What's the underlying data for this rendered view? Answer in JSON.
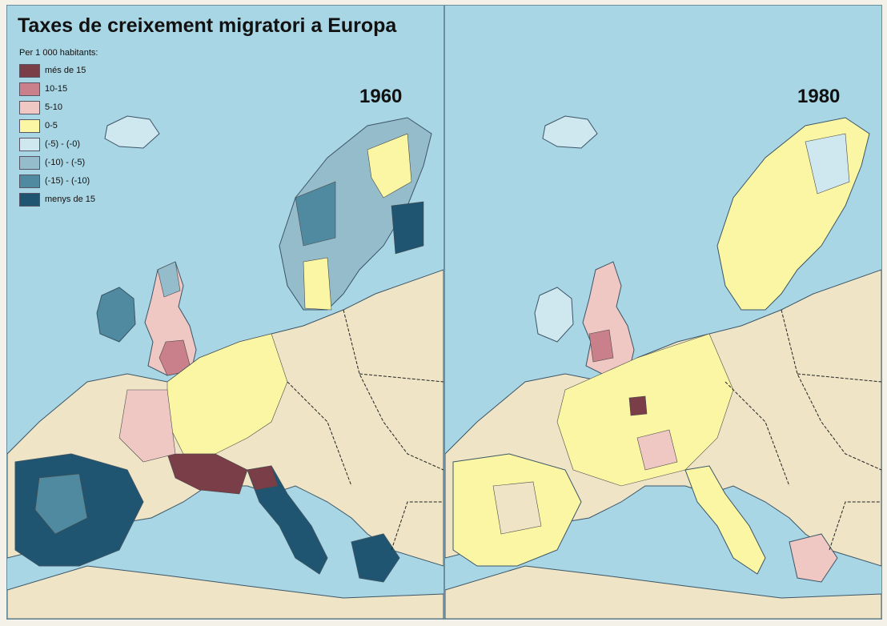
{
  "title": "Taxes de creixement migratori a Europa",
  "legend": {
    "heading": "Per 1 000 habitants:",
    "items": [
      {
        "label": "més de 15",
        "color": "#7a3e48"
      },
      {
        "label": "10-15",
        "color": "#c9808b"
      },
      {
        "label": "5-10",
        "color": "#efc7c3"
      },
      {
        "label": "0-5",
        "color": "#fbf6a3"
      },
      {
        "label": "(-5) - (-0)",
        "color": "#cfe7ef"
      },
      {
        "label": "(-10) - (-5)",
        "color": "#94bccb"
      },
      {
        "label": "(-15) - (-10)",
        "color": "#4f8aa0"
      },
      {
        "label": "menys de 15",
        "color": "#1f5570"
      }
    ]
  },
  "colors": {
    "sea": "#a9d6e5",
    "land_no_data": "#efe5c6"
  },
  "maps": [
    {
      "year": "1960"
    },
    {
      "year": "1980"
    }
  ]
}
